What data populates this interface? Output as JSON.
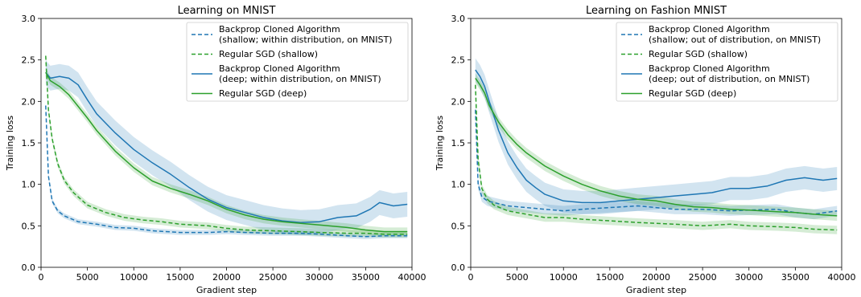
{
  "colors": {
    "blue": "#1f77b4",
    "green": "#2ca02c"
  },
  "chart_data": [
    {
      "type": "line",
      "title": "Learning on MNIST",
      "xlabel": "Gradient step",
      "ylabel": "Training loss",
      "xlim": [
        0,
        40000
      ],
      "ylim": [
        0.0,
        3.0
      ],
      "xticks": [
        "0",
        "5000",
        "10000",
        "15000",
        "20000",
        "25000",
        "30000",
        "35000",
        "40000"
      ],
      "yticks": [
        "0.0",
        "0.5",
        "1.0",
        "1.5",
        "2.0",
        "2.5",
        "3.0"
      ],
      "grid": false,
      "legend_position": "top-right",
      "series": [
        {
          "name": "Backprop Cloned Algorithm\n(shallow; within distribution, on MNIST)",
          "color": "#1f77b4",
          "style": "dashed",
          "band": 0.03,
          "x": [
            500,
            800,
            1200,
            1800,
            2500,
            4000,
            6000,
            8000,
            10000,
            12000,
            15000,
            18000,
            20000,
            22000,
            25000,
            28000,
            30000,
            33000,
            35000,
            37000,
            39500
          ],
          "y": [
            1.95,
            1.1,
            0.8,
            0.68,
            0.62,
            0.55,
            0.52,
            0.48,
            0.47,
            0.44,
            0.42,
            0.42,
            0.43,
            0.42,
            0.41,
            0.41,
            0.4,
            0.38,
            0.37,
            0.38,
            0.38
          ]
        },
        {
          "name": "Regular SGD (shallow)",
          "color": "#2ca02c",
          "style": "dashed",
          "band": 0.04,
          "x": [
            500,
            800,
            1200,
            1800,
            2500,
            3500,
            5000,
            7000,
            9000,
            11000,
            13000,
            15000,
            18000,
            20000,
            22000,
            25000,
            28000,
            30000,
            33000,
            35000,
            37000,
            39500
          ],
          "y": [
            2.55,
            1.9,
            1.55,
            1.25,
            1.05,
            0.9,
            0.75,
            0.66,
            0.6,
            0.57,
            0.55,
            0.52,
            0.5,
            0.47,
            0.45,
            0.44,
            0.43,
            0.42,
            0.41,
            0.41,
            0.4,
            0.4
          ]
        },
        {
          "name": "Backprop Cloned Algorithm\n(deep; within distribution, on MNIST)",
          "color": "#1f77b4",
          "style": "solid",
          "band": 0.15,
          "x": [
            500,
            1000,
            2000,
            3000,
            4000,
            5000,
            6000,
            8000,
            10000,
            12000,
            14000,
            16000,
            18000,
            20000,
            22000,
            24000,
            26000,
            28000,
            30000,
            32000,
            34000,
            35500,
            36500,
            38000,
            39500
          ],
          "y": [
            2.35,
            2.28,
            2.3,
            2.28,
            2.2,
            2.02,
            1.85,
            1.62,
            1.42,
            1.26,
            1.12,
            0.96,
            0.82,
            0.72,
            0.66,
            0.6,
            0.56,
            0.54,
            0.55,
            0.6,
            0.62,
            0.7,
            0.78,
            0.74,
            0.76
          ]
        },
        {
          "name": "Regular SGD (deep)",
          "color": "#2ca02c",
          "style": "solid",
          "band": 0.05,
          "x": [
            500,
            1000,
            2000,
            3000,
            4000,
            5000,
            6000,
            8000,
            10000,
            12000,
            14000,
            16000,
            18000,
            20000,
            22000,
            24000,
            26000,
            28000,
            30000,
            33000,
            35000,
            37000,
            39500
          ],
          "y": [
            2.35,
            2.25,
            2.18,
            2.08,
            1.94,
            1.8,
            1.65,
            1.4,
            1.2,
            1.04,
            0.95,
            0.88,
            0.8,
            0.7,
            0.63,
            0.58,
            0.55,
            0.53,
            0.51,
            0.48,
            0.45,
            0.43,
            0.43
          ]
        }
      ]
    },
    {
      "type": "line",
      "title": "Learning on Fashion MNIST",
      "xlabel": "Gradient step",
      "ylabel": "Training loss",
      "xlim": [
        0,
        40000
      ],
      "ylim": [
        0.0,
        3.0
      ],
      "xticks": [
        "0",
        "5000",
        "10000",
        "15000",
        "20000",
        "25000",
        "30000",
        "35000",
        "40000"
      ],
      "yticks": [
        "0.0",
        "0.5",
        "1.0",
        "1.5",
        "2.0",
        "2.5",
        "3.0"
      ],
      "grid": false,
      "legend_position": "top-right",
      "series": [
        {
          "name": "Backprop Cloned Algorithm\n(shallow; out of distribution, on MNIST)",
          "color": "#1f77b4",
          "style": "dashed",
          "band": 0.06,
          "x": [
            500,
            800,
            1200,
            1800,
            2500,
            4000,
            6000,
            8000,
            10000,
            12000,
            15000,
            18000,
            20000,
            22000,
            25000,
            28000,
            30000,
            33000,
            35000,
            37000,
            39500
          ],
          "y": [
            1.9,
            1.0,
            0.85,
            0.8,
            0.78,
            0.74,
            0.72,
            0.7,
            0.68,
            0.7,
            0.72,
            0.74,
            0.72,
            0.7,
            0.7,
            0.68,
            0.69,
            0.7,
            0.66,
            0.64,
            0.68
          ]
        },
        {
          "name": "Regular SGD (shallow)",
          "color": "#2ca02c",
          "style": "dashed",
          "band": 0.05,
          "x": [
            500,
            800,
            1200,
            1800,
            2500,
            4000,
            6000,
            8000,
            10000,
            12000,
            15000,
            18000,
            20000,
            22000,
            25000,
            28000,
            30000,
            33000,
            35000,
            37000,
            39500
          ],
          "y": [
            2.2,
            1.3,
            0.95,
            0.82,
            0.75,
            0.68,
            0.64,
            0.6,
            0.6,
            0.58,
            0.56,
            0.54,
            0.53,
            0.52,
            0.5,
            0.52,
            0.5,
            0.49,
            0.48,
            0.46,
            0.45
          ]
        },
        {
          "name": "Backprop Cloned Algorithm\n(deep; out of distribution, on MNIST)",
          "color": "#1f77b4",
          "style": "solid",
          "band": 0.14,
          "x": [
            500,
            1000,
            1500,
            2000,
            3000,
            4000,
            5000,
            6000,
            7000,
            8000,
            10000,
            12000,
            14000,
            16000,
            18000,
            20000,
            22000,
            24000,
            26000,
            28000,
            30000,
            32000,
            34000,
            36000,
            38000,
            39500
          ],
          "y": [
            2.38,
            2.3,
            2.18,
            2.0,
            1.65,
            1.38,
            1.2,
            1.05,
            0.96,
            0.88,
            0.8,
            0.78,
            0.78,
            0.8,
            0.82,
            0.84,
            0.86,
            0.88,
            0.9,
            0.95,
            0.95,
            0.98,
            1.05,
            1.08,
            1.05,
            1.07
          ]
        },
        {
          "name": "Regular SGD (deep)",
          "color": "#2ca02c",
          "style": "solid",
          "band": 0.06,
          "x": [
            500,
            1000,
            1500,
            2000,
            3000,
            4000,
            5000,
            6000,
            8000,
            10000,
            12000,
            14000,
            16000,
            18000,
            20000,
            22000,
            24000,
            26000,
            28000,
            30000,
            33000,
            35000,
            37000,
            39500
          ],
          "y": [
            2.28,
            2.2,
            2.1,
            1.95,
            1.75,
            1.6,
            1.48,
            1.38,
            1.22,
            1.1,
            1.0,
            0.92,
            0.86,
            0.82,
            0.8,
            0.76,
            0.73,
            0.72,
            0.7,
            0.69,
            0.67,
            0.66,
            0.64,
            0.62
          ]
        }
      ]
    }
  ]
}
